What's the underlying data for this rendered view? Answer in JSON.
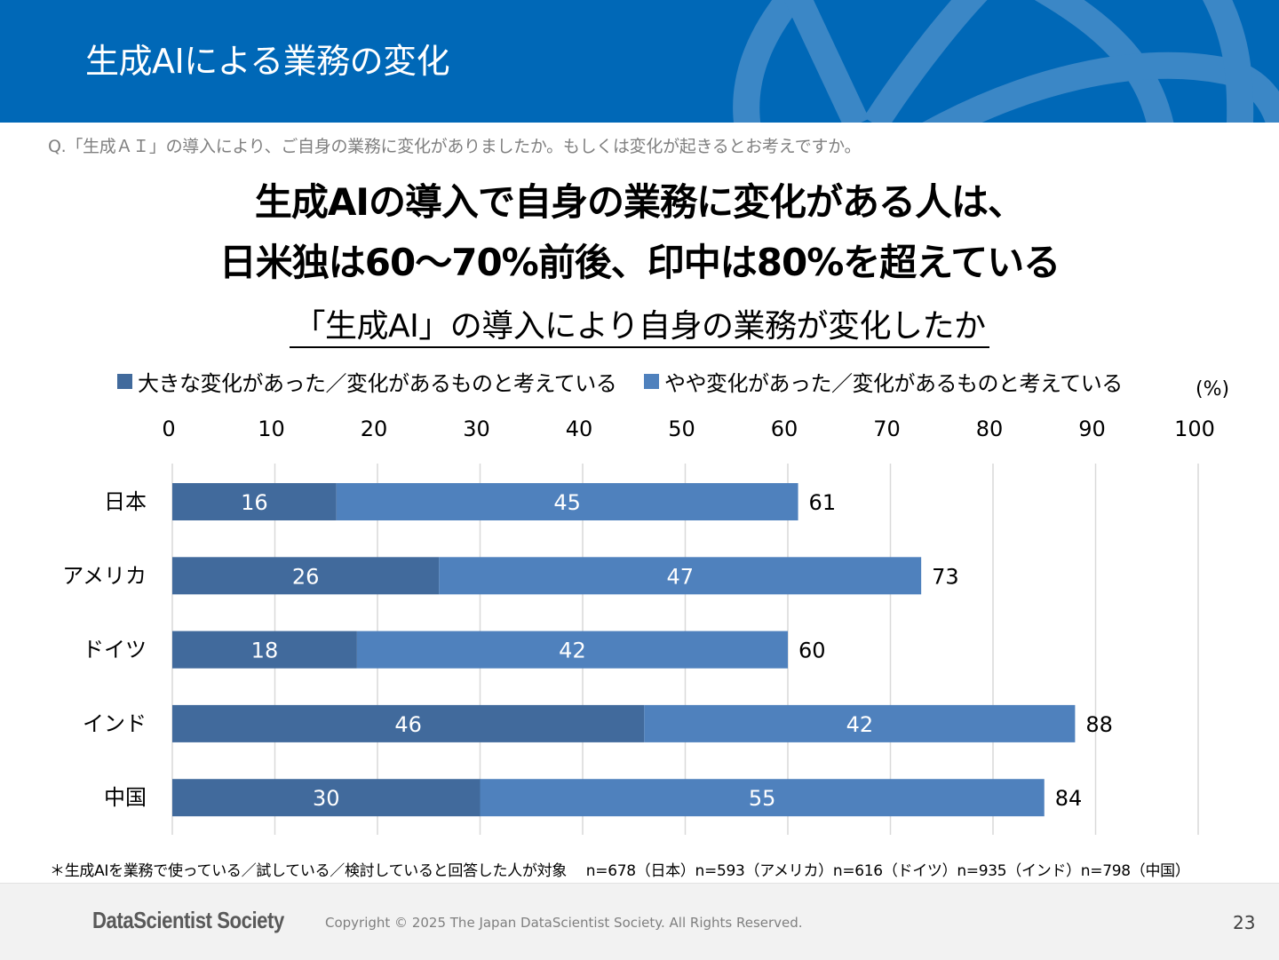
{
  "header": {
    "title": "生成AIによる業務の変化"
  },
  "question": "Q.「生成ＡＩ」の導入により、ご自身の業務に変化がありましたか。もしくは変化が起きるとお考えですか。",
  "headline": {
    "line1": "生成AIの導入で自身の業務に変化がある人は、",
    "line2": "日米独は60～70%前後、印中は80%を超えている"
  },
  "chart_data": {
    "type": "bar",
    "orientation": "horizontal",
    "stacked": true,
    "title": "「生成AI」の導入により自身の業務が変化したか",
    "unit_label": "(%)",
    "xlabel": "",
    "ylabel": "",
    "xlim": [
      0,
      100
    ],
    "x_ticks": [
      0,
      10,
      20,
      30,
      40,
      50,
      60,
      70,
      80,
      90,
      100
    ],
    "grid": true,
    "legend_position": "top",
    "categories": [
      "日本",
      "アメリカ",
      "ドイツ",
      "インド",
      "中国"
    ],
    "series": [
      {
        "name": "大きな変化があった／変化があるものと考えている",
        "color": "#416a9c",
        "values": [
          16,
          26,
          18,
          46,
          30
        ]
      },
      {
        "name": "やや変化があった／変化があるものと考えている",
        "color": "#4f81bd",
        "values": [
          45,
          47,
          42,
          42,
          55
        ]
      }
    ],
    "totals": [
      61,
      73,
      60,
      88,
      84
    ]
  },
  "footnote": "＊生成AIを業務で使っている／試している／検討していると回答した人が対象　 n=678（日本）n=593（アメリカ）n=616（ドイツ）n=935（インド）n=798（中国）",
  "footer": {
    "logo": "DataScientist Society",
    "copyright": "Copyright © 2025 The Japan DataScientist Society. All Rights Reserved.",
    "page_number": "23"
  }
}
